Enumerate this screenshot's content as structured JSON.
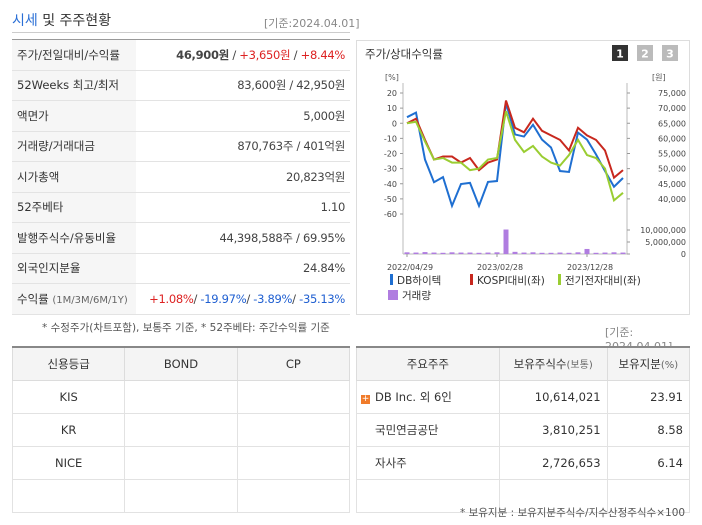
{
  "header": {
    "title_highlight": "시세",
    "title": "및 주주현황",
    "date": "[기준:2024.04.01]"
  },
  "quote_table": {
    "rows": [
      {
        "label": "주가/전일대비/수익률",
        "value": [
          "46,900원",
          " / ",
          "+3,650원",
          " / ",
          "+8.44%"
        ]
      },
      {
        "label": "52Weeks 최고/최저",
        "value": [
          "83,600원 / 42,950원"
        ]
      },
      {
        "label": "액면가",
        "value": [
          "5,000원"
        ]
      },
      {
        "label": "거래량/거래대금",
        "value": [
          "870,763주 / 401억원"
        ]
      },
      {
        "label": "시가총액",
        "value": [
          "20,823억원"
        ]
      },
      {
        "label": "52주베타",
        "value": [
          "1.10"
        ]
      },
      {
        "label": "발행주식수/유동비율",
        "value": [
          "44,398,588주 / 69.95%"
        ]
      },
      {
        "label": "외국인지분율",
        "value": [
          "24.84%"
        ]
      },
      {
        "label": "수익률",
        "sublabel": "(1M/3M/6M/1Y)",
        "value": [
          "+1.08%",
          "/ ",
          "-19.97%",
          "/ ",
          "-3.89%",
          "/ ",
          "-35.13%"
        ]
      }
    ]
  },
  "quote_note": "* 수정주가(차트포함), 보통주 기준, * 52주베타: 주간수익률 기준",
  "chart_data": {
    "type": "line",
    "title": "주가/상대수익률",
    "tabs": [
      "1",
      "2",
      "3"
    ],
    "y_unit": "[%]",
    "y2_unit": "[원]",
    "categories": [
      "2022/04/29",
      null,
      null,
      null,
      null,
      null,
      null,
      null,
      null,
      null,
      "2023/02/28",
      null,
      null,
      null,
      null,
      null,
      null,
      null,
      null,
      null,
      "2023/12/28",
      null,
      null,
      null,
      null
    ],
    "ylim": [
      -60,
      20
    ],
    "yticks": [
      20,
      10,
      0,
      -10,
      -20,
      -30,
      -40,
      -50,
      -60
    ],
    "y2lim": [
      35000,
      75000
    ],
    "y2ticks": [
      {
        "value": 75000,
        "label": "75,000"
      },
      {
        "value": 70000,
        "label": "70,000"
      },
      {
        "value": 65000,
        "label": "65,000"
      },
      {
        "value": 60000,
        "label": "60,000"
      },
      {
        "value": 55000,
        "label": "55,000"
      },
      {
        "value": 50000,
        "label": "50,000"
      },
      {
        "value": 45000,
        "label": "45,000"
      },
      {
        "value": 40000,
        "label": "40,000"
      }
    ],
    "vlim": [
      0,
      10000000
    ],
    "vticks": [
      {
        "value": 10000000,
        "label": "10,000,000"
      },
      {
        "value": 5000000,
        "label": "5,000,000"
      },
      0
    ],
    "series": [
      {
        "name": "DB하이텍",
        "color": "#1f6fd1",
        "axis": "y2",
        "values": [
          67000,
          68500,
          53000,
          45500,
          47200,
          37700,
          44900,
          45300,
          37700,
          45600,
          45900,
          71700,
          61300,
          60600,
          64500,
          59600,
          57000,
          49200,
          48900,
          61900,
          59600,
          54700,
          49200,
          44000,
          46900
        ]
      },
      {
        "name": "KOSPI대비(좌)",
        "color": "#c8281e",
        "axis": "y",
        "values": [
          0,
          3,
          -11,
          -24,
          -22,
          -22,
          -26,
          -23,
          -31,
          -26,
          -24,
          15,
          -3,
          -6,
          3,
          -5,
          -8,
          -11,
          -18,
          -3,
          -8,
          -11,
          -18,
          -36,
          -31
        ]
      },
      {
        "name": "전기전자대비(좌)",
        "color": "#9acd32",
        "axis": "y",
        "values": [
          0,
          1,
          -12,
          -24,
          -23,
          -26,
          -26,
          -31,
          -30,
          -24,
          -23,
          8,
          -11,
          -19,
          -15,
          -22,
          -26,
          -28,
          -21,
          -11,
          -21,
          -23,
          -30,
          -51,
          -46
        ]
      },
      {
        "name": "거래량",
        "color": "#b07de0",
        "axis": "v",
        "type": "bar",
        "values": [
          700000,
          600000,
          800000,
          600000,
          500000,
          700000,
          600000,
          600000,
          500000,
          600000,
          700000,
          10200000,
          900000,
          600000,
          700000,
          500000,
          500000,
          600000,
          500000,
          700000,
          2100000,
          500000,
          600000,
          700000,
          600000
        ]
      }
    ]
  },
  "date_note": "[기준: 2024.04.01]",
  "credit_table": {
    "headers": [
      "신용등급",
      "BOND",
      "CP"
    ],
    "agencies": [
      "KIS",
      "KR",
      "NICE"
    ]
  },
  "holder_table": {
    "headers": [
      "주요주주",
      "보유주식수",
      "보유지분"
    ],
    "header_subs": [
      null,
      "(보통)",
      "(%)"
    ],
    "rows": [
      [
        "DB Inc. 외 6인",
        "10,614,021",
        "23.91"
      ],
      [
        "국민연금공단",
        "3,810,251",
        "8.58"
      ],
      [
        "자사주",
        "2,726,653",
        "6.14"
      ]
    ]
  },
  "holder_note": "* 보유지분 : 보유지분주식수/지수산정주식수×100"
}
